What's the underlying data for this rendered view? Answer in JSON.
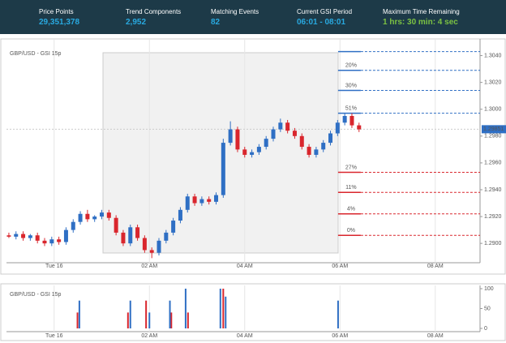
{
  "header": {
    "stats": [
      {
        "label": "Price Points",
        "value": "29,351,378"
      },
      {
        "label": "Trend Components",
        "value": "2,952"
      },
      {
        "label": "Matching Events",
        "value": "82"
      },
      {
        "label": "Current GSI Period",
        "value": "06:01 - 08:01"
      },
      {
        "label": "Maximum Time Remaining",
        "value": "1 hrs: 30 min: 4 sec"
      }
    ]
  },
  "chart_data": [
    {
      "type": "candlestick",
      "title": "GBP/USD - GSI 15p",
      "up_color": "#2f6fc4",
      "down_color": "#d9262d",
      "x": [
        -0.95,
        -0.8,
        -0.65,
        -0.5,
        -0.35,
        -0.2,
        -0.05,
        0.1,
        0.25,
        0.4,
        0.55,
        0.7,
        0.85,
        1.0,
        1.15,
        1.3,
        1.45,
        1.6,
        1.75,
        1.9,
        2.05,
        2.2,
        2.35,
        2.5,
        2.65,
        2.8,
        2.95,
        3.1,
        3.25,
        3.4,
        3.55,
        3.7,
        3.85,
        4.0,
        4.15,
        4.3,
        4.45,
        4.6,
        4.75,
        4.9,
        5.05,
        5.2,
        5.35,
        5.5,
        5.65,
        5.8,
        5.95,
        6.1,
        6.25,
        6.4
      ],
      "open": [
        1.2906,
        1.2905,
        1.2907,
        1.2904,
        1.2906,
        1.2902,
        1.29,
        1.2903,
        1.2901,
        1.291,
        1.2916,
        1.2922,
        1.2918,
        1.292,
        1.2923,
        1.2919,
        1.2908,
        1.29,
        1.2912,
        1.2904,
        1.2895,
        1.2893,
        1.2902,
        1.2908,
        1.2917,
        1.2925,
        1.2935,
        1.293,
        1.2933,
        1.2931,
        1.2936,
        1.2975,
        1.2985,
        1.297,
        1.2966,
        1.2968,
        1.2972,
        1.2978,
        1.2985,
        1.299,
        1.2984,
        1.298,
        1.2972,
        1.2966,
        1.297,
        1.2975,
        1.2982,
        1.299,
        1.2995,
        1.2988
      ],
      "high": [
        1.2908,
        1.2909,
        1.2909,
        1.2907,
        1.2908,
        1.2904,
        1.2905,
        1.2905,
        1.2912,
        1.2918,
        1.2924,
        1.2925,
        1.2921,
        1.2925,
        1.2925,
        1.2921,
        1.291,
        1.2914,
        1.2914,
        1.2906,
        1.2897,
        1.2904,
        1.291,
        1.2919,
        1.2927,
        1.2937,
        1.2937,
        1.2935,
        1.2935,
        1.2938,
        1.2978,
        1.2991,
        1.2987,
        1.2972,
        1.297,
        1.2974,
        1.298,
        1.2987,
        1.2993,
        1.2992,
        1.2986,
        1.2982,
        1.2974,
        1.2972,
        1.2977,
        1.2984,
        1.2992,
        1.2997,
        1.2997,
        1.299
      ],
      "low": [
        1.2904,
        1.2903,
        1.2902,
        1.2902,
        1.29,
        1.2898,
        1.2898,
        1.2899,
        1.2899,
        1.2908,
        1.2914,
        1.2916,
        1.2916,
        1.2918,
        1.2917,
        1.2906,
        1.2898,
        1.2898,
        1.2902,
        1.2893,
        1.2889,
        1.2891,
        1.29,
        1.2906,
        1.2915,
        1.2923,
        1.2928,
        1.2928,
        1.2929,
        1.2929,
        1.2934,
        1.2973,
        1.2968,
        1.2964,
        1.2964,
        1.2966,
        1.297,
        1.2976,
        1.2983,
        1.2982,
        1.2978,
        1.297,
        1.2964,
        1.2964,
        1.2968,
        1.2973,
        1.298,
        1.2988,
        1.2986,
        1.2983
      ],
      "close": [
        1.2905,
        1.2907,
        1.2904,
        1.2906,
        1.2902,
        1.29,
        1.2903,
        1.2901,
        1.291,
        1.2916,
        1.2922,
        1.2918,
        1.292,
        1.2923,
        1.2919,
        1.2908,
        1.29,
        1.2912,
        1.2904,
        1.2895,
        1.2893,
        1.2902,
        1.2908,
        1.2917,
        1.2925,
        1.2935,
        1.293,
        1.2933,
        1.2931,
        1.2936,
        1.2975,
        1.2985,
        1.297,
        1.2966,
        1.2968,
        1.2972,
        1.2978,
        1.2985,
        1.299,
        1.2984,
        1.298,
        1.2972,
        1.2966,
        1.297,
        1.2975,
        1.2982,
        1.299,
        1.2995,
        1.2988,
        1.2985
      ],
      "last_price": 1.29851,
      "levels": [
        {
          "price": 1.3043,
          "color": "#2f6fc4"
        },
        {
          "price": 1.3029,
          "value": 20,
          "value_label": "20%",
          "color": "#2f6fc4"
        },
        {
          "price": 1.3014,
          "value": 30,
          "value_label": "30%",
          "color": "#2f6fc4"
        },
        {
          "price": 1.2997,
          "value": 51,
          "value_label": "51%",
          "color": "#2f6fc4"
        },
        {
          "price": 1.2953,
          "value": 27,
          "value_label": "27%",
          "color": "#d9262d"
        },
        {
          "price": 1.2938,
          "value": 11,
          "value_label": "11%",
          "color": "#d9262d"
        },
        {
          "price": 1.2922,
          "value": 4,
          "value_label": "4%",
          "color": "#d9262d"
        },
        {
          "price": 1.2906,
          "value": 0,
          "value_label": "0%",
          "color": "#d9262d"
        }
      ],
      "xlim": [
        -1.0,
        8.94
      ],
      "ylim": [
        1.2888,
        1.305
      ],
      "xticks": [
        {
          "value": 0,
          "label": "Tue 16"
        },
        {
          "value": 2,
          "label": "02 AM"
        },
        {
          "value": 4,
          "label": "04 AM"
        },
        {
          "value": 6,
          "label": "06 AM"
        },
        {
          "value": 8,
          "label": "08 AM"
        }
      ],
      "yticks": [
        {
          "value": 1.29,
          "label": "1.2900"
        },
        {
          "value": 1.292,
          "label": "1.2920"
        },
        {
          "value": 1.294,
          "label": "1.2940"
        },
        {
          "value": 1.296,
          "label": "1.2960"
        },
        {
          "value": 1.298,
          "label": "1.2980"
        },
        {
          "value": 1.3,
          "label": "1.3000"
        },
        {
          "value": 1.302,
          "label": "1.3020"
        },
        {
          "value": 1.304,
          "label": "1.3040"
        }
      ],
      "grid": true
    },
    {
      "type": "bar",
      "title": "GBP/USD - GSI 15p",
      "series": [
        {
          "color": "#d9262d",
          "x": [
            0.49,
            1.55,
            1.93,
            2.46,
            2.81,
            3.55
          ],
          "values": [
            40,
            40,
            70,
            40,
            40,
            100
          ]
        },
        {
          "color": "#2f6fc4",
          "x": [
            0.53,
            1.6,
            2.0,
            2.43,
            2.76,
            3.49,
            3.6,
            5.96
          ],
          "values": [
            70,
            70,
            40,
            70,
            100,
            100,
            80,
            70
          ]
        }
      ],
      "xlim": [
        -1.0,
        8.94
      ],
      "ylim": [
        0,
        100
      ],
      "xticks": [
        {
          "value": 0,
          "label": "Tue 16"
        },
        {
          "value": 2,
          "label": "02 AM"
        },
        {
          "value": 4,
          "label": "04 AM"
        },
        {
          "value": 6,
          "label": "06 AM"
        },
        {
          "value": 8,
          "label": "08 AM"
        }
      ],
      "yticks": [
        0,
        50,
        100
      ],
      "grid": true
    }
  ]
}
